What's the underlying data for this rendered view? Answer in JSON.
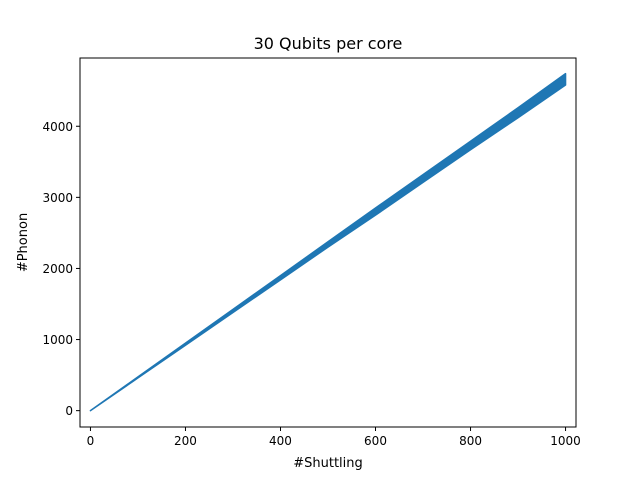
{
  "chart_data": {
    "type": "area",
    "title": "30 Qubits per core",
    "xlabel": "#Shuttling",
    "ylabel": "#Phonon",
    "xlim": [
      -22,
      1022
    ],
    "ylim": [
      -230,
      4960
    ],
    "xticks": [
      0,
      200,
      400,
      600,
      800,
      1000
    ],
    "yticks": [
      0,
      1000,
      2000,
      3000,
      4000
    ],
    "grid": false,
    "legend": "none",
    "series": [
      {
        "x": [
          0,
          100,
          200,
          300,
          400,
          500,
          600,
          700,
          800,
          900,
          1000
        ],
        "y_low": [
          0,
          460,
          920,
          1380,
          1840,
          2300,
          2750,
          3210,
          3670,
          4120,
          4580
        ],
        "y_high": [
          0,
          475,
          950,
          1425,
          1900,
          2375,
          2850,
          3320,
          3790,
          4260,
          4740
        ],
        "color": "#1f77b4"
      }
    ]
  }
}
